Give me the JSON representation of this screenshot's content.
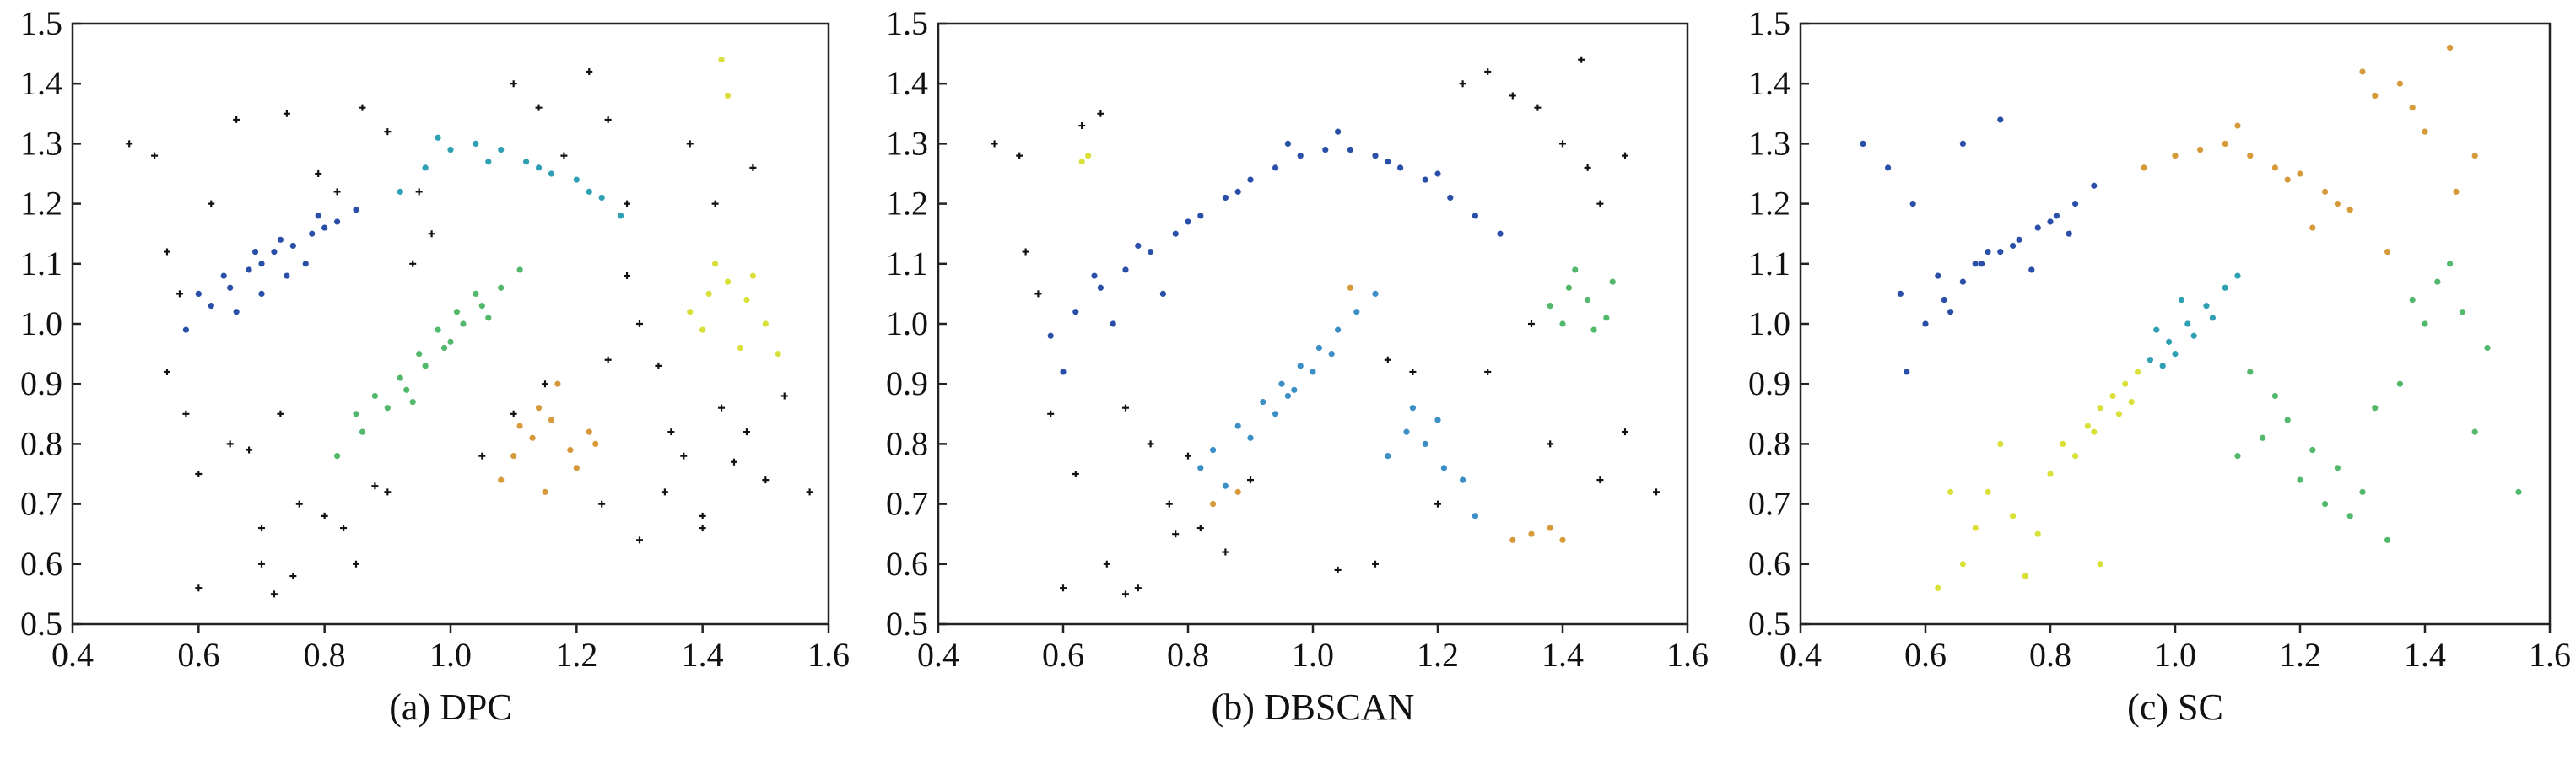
{
  "colors": {
    "noise": "#111111",
    "blue": "#2a4fa8",
    "teal": "#2f9fb3",
    "green": "#52b86b",
    "orange": "#d69a3a",
    "yellow": "#d9e039",
    "sky": "#3b8fc6"
  },
  "chart_data": [
    {
      "type": "scatter",
      "caption": "(a) DPC",
      "xlim": [
        0.4,
        1.6
      ],
      "ylim": [
        0.5,
        1.5
      ],
      "xticks": [
        "0.4",
        "0.6",
        "0.8",
        "1.0",
        "1.2",
        "1.4",
        "1.6"
      ],
      "yticks": [
        "0.5",
        "0.6",
        "0.7",
        "0.8",
        "0.9",
        "1.0",
        "1.1",
        "1.2",
        "1.3",
        "1.4",
        "1.5"
      ],
      "grid": false,
      "series": [
        {
          "color_key": "blue",
          "x": [
            0.58,
            0.62,
            0.65,
            0.68,
            0.7,
            0.72,
            0.75,
            0.78,
            0.8,
            0.82,
            0.85,
            0.66,
            0.7,
            0.74,
            0.77,
            0.6,
            0.64,
            0.69,
            0.73,
            0.79
          ],
          "y": [
            0.99,
            1.03,
            1.06,
            1.09,
            1.1,
            1.12,
            1.13,
            1.15,
            1.16,
            1.17,
            1.19,
            1.02,
            1.05,
            1.08,
            1.1,
            1.05,
            1.08,
            1.12,
            1.14,
            1.18
          ]
        },
        {
          "color_key": "teal",
          "x": [
            0.92,
            0.96,
            1.0,
            1.04,
            1.08,
            1.12,
            1.16,
            1.2,
            1.24,
            1.27,
            0.98,
            1.06,
            1.14,
            1.22
          ],
          "y": [
            1.22,
            1.26,
            1.29,
            1.3,
            1.29,
            1.27,
            1.25,
            1.24,
            1.21,
            1.18,
            1.31,
            1.27,
            1.26,
            1.22
          ]
        },
        {
          "color_key": "green",
          "x": [
            0.82,
            0.86,
            0.9,
            0.93,
            0.96,
            0.99,
            1.02,
            1.05,
            1.08,
            1.11,
            0.88,
            0.92,
            0.95,
            0.98,
            1.01,
            1.04,
            0.85,
            0.94,
            1.0,
            1.06
          ],
          "y": [
            0.78,
            0.82,
            0.86,
            0.89,
            0.93,
            0.96,
            1.0,
            1.03,
            1.06,
            1.09,
            0.88,
            0.91,
            0.95,
            0.99,
            1.02,
            1.05,
            0.85,
            0.87,
            0.97,
            1.01
          ]
        },
        {
          "color_key": "orange",
          "x": [
            1.1,
            1.13,
            1.16,
            1.19,
            1.22,
            1.08,
            1.14,
            1.2,
            1.17,
            1.11,
            1.23,
            1.15
          ],
          "y": [
            0.78,
            0.81,
            0.84,
            0.79,
            0.82,
            0.74,
            0.86,
            0.76,
            0.9,
            0.83,
            0.8,
            0.72
          ]
        },
        {
          "color_key": "yellow",
          "x": [
            1.38,
            1.41,
            1.44,
            1.47,
            1.5,
            1.42,
            1.46,
            1.4,
            1.48,
            1.44,
            1.52,
            1.43
          ],
          "y": [
            1.02,
            1.05,
            1.07,
            1.04,
            1.0,
            1.1,
            0.96,
            0.99,
            1.08,
            1.38,
            0.95,
            1.44
          ]
        },
        {
          "color_key": "noise",
          "x": [
            0.49,
            0.53,
            0.55,
            0.57,
            0.6,
            0.62,
            0.66,
            0.7,
            0.73,
            0.76,
            0.79,
            0.83,
            0.86,
            0.9,
            0.94,
            0.97,
            1.1,
            1.14,
            1.18,
            1.22,
            1.25,
            1.28,
            1.3,
            1.34,
            1.37,
            1.4,
            1.43,
            1.47,
            1.5,
            1.53,
            1.57,
            0.6,
            0.65,
            0.7,
            0.75,
            0.8,
            0.85,
            0.88,
            1.05,
            1.1,
            1.15,
            1.25,
            1.3,
            1.35,
            1.4,
            1.45,
            0.55,
            0.58,
            0.68,
            0.72,
            0.9,
            0.95,
            1.28,
            1.33,
            1.38,
            1.42,
            1.48,
            0.74,
            0.82,
            1.24
          ],
          "y": [
            1.3,
            1.28,
            0.92,
            1.05,
            0.56,
            1.2,
            1.34,
            0.6,
            0.85,
            0.7,
            1.25,
            0.66,
            1.36,
            1.32,
            1.1,
            1.15,
            1.4,
            1.36,
            1.28,
            1.42,
            1.34,
            1.2,
            0.64,
            0.72,
            0.78,
            0.66,
            0.86,
            0.82,
            0.74,
            0.88,
            0.72,
            0.75,
            0.8,
            0.66,
            0.58,
            0.68,
            0.6,
            0.73,
            0.78,
            0.85,
            0.9,
            0.94,
            1.0,
            0.82,
            0.68,
            0.77,
            1.12,
            0.85,
            0.79,
            0.55,
            0.72,
            1.22,
            1.08,
            0.93,
            1.3,
            1.2,
            1.26,
            1.35,
            1.22,
            0.7
          ]
        }
      ]
    },
    {
      "type": "scatter",
      "caption": "(b) DBSCAN",
      "xlim": [
        0.4,
        1.6
      ],
      "ylim": [
        0.5,
        1.5
      ],
      "xticks": [
        "0.4",
        "0.6",
        "0.8",
        "1.0",
        "1.2",
        "1.4",
        "1.6"
      ],
      "yticks": [
        "0.5",
        "0.6",
        "0.7",
        "0.8",
        "0.9",
        "1.0",
        "1.1",
        "1.2",
        "1.3",
        "1.4",
        "1.5"
      ],
      "grid": false,
      "series": [
        {
          "color_key": "blue",
          "x": [
            0.58,
            0.62,
            0.66,
            0.7,
            0.74,
            0.78,
            0.82,
            0.86,
            0.9,
            0.94,
            0.98,
            1.02,
            1.06,
            1.1,
            1.14,
            1.18,
            1.22,
            1.26,
            1.3,
            0.65,
            0.72,
            0.8,
            0.88,
            0.96,
            1.04,
            1.12,
            1.2,
            0.6,
            0.68,
            0.76
          ],
          "y": [
            0.98,
            1.02,
            1.06,
            1.09,
            1.12,
            1.15,
            1.18,
            1.21,
            1.24,
            1.26,
            1.28,
            1.29,
            1.29,
            1.28,
            1.26,
            1.24,
            1.21,
            1.18,
            1.15,
            1.08,
            1.13,
            1.17,
            1.22,
            1.3,
            1.32,
            1.27,
            1.25,
            0.92,
            1.0,
            1.05
          ]
        },
        {
          "color_key": "sky",
          "x": [
            0.84,
            0.88,
            0.92,
            0.95,
            0.98,
            1.01,
            1.04,
            1.07,
            1.1,
            0.9,
            0.94,
            0.97,
            1.0,
            1.03,
            1.12,
            1.15,
            1.18,
            1.21,
            1.24,
            1.16,
            1.2,
            0.86,
            0.82,
            1.26,
            0.96
          ],
          "y": [
            0.79,
            0.83,
            0.87,
            0.9,
            0.93,
            0.96,
            0.99,
            1.02,
            1.05,
            0.81,
            0.85,
            0.89,
            0.92,
            0.95,
            0.78,
            0.82,
            0.8,
            0.76,
            0.74,
            0.86,
            0.84,
            0.73,
            0.76,
            0.68,
            0.88
          ]
        },
        {
          "color_key": "green",
          "x": [
            1.38,
            1.41,
            1.44,
            1.47,
            1.42,
            1.45,
            1.4,
            1.48
          ],
          "y": [
            1.03,
            1.06,
            1.04,
            1.01,
            1.09,
            0.99,
            1.0,
            1.07
          ]
        },
        {
          "color_key": "orange",
          "x": [
            1.32,
            1.35,
            1.38,
            1.4,
            0.84,
            0.88,
            1.06
          ],
          "y": [
            0.64,
            0.65,
            0.66,
            0.64,
            0.7,
            0.72,
            1.06
          ]
        },
        {
          "color_key": "yellow",
          "x": [
            0.63,
            0.64
          ],
          "y": [
            1.27,
            1.28
          ]
        },
        {
          "color_key": "noise",
          "x": [
            0.49,
            0.53,
            0.56,
            0.6,
            0.63,
            0.67,
            0.7,
            0.74,
            0.77,
            0.82,
            0.86,
            0.9,
            1.04,
            1.1,
            1.16,
            1.2,
            1.24,
            1.28,
            1.32,
            1.36,
            1.4,
            1.43,
            1.46,
            1.5,
            1.55,
            0.62,
            0.7,
            0.78,
            1.28,
            1.35,
            1.46,
            0.54,
            0.58,
            1.12,
            1.38,
            1.44,
            1.5,
            0.66,
            0.72,
            0.8
          ],
          "y": [
            1.3,
            1.28,
            1.05,
            0.56,
            1.33,
            0.6,
            0.55,
            0.8,
            0.7,
            0.66,
            0.62,
            0.74,
            0.59,
            0.6,
            0.92,
            0.7,
            1.4,
            1.42,
            1.38,
            1.36,
            1.3,
            1.44,
            1.2,
            0.82,
            0.72,
            0.75,
            0.86,
            0.65,
            0.92,
            1.0,
            0.74,
            1.12,
            0.85,
            0.94,
            0.8,
            1.26,
            1.28,
            1.35,
            0.56,
            0.78
          ]
        }
      ]
    },
    {
      "type": "scatter",
      "caption": "(c) SC",
      "xlim": [
        0.4,
        1.6
      ],
      "ylim": [
        0.5,
        1.5
      ],
      "xticks": [
        "0.4",
        "0.6",
        "0.8",
        "1.0",
        "1.2",
        "1.4",
        "1.6"
      ],
      "yticks": [
        "0.5",
        "0.6",
        "0.7",
        "0.8",
        "0.9",
        "1.0",
        "1.1",
        "1.2",
        "1.3",
        "1.4",
        "1.5"
      ],
      "grid": false,
      "series": [
        {
          "color_key": "blue",
          "x": [
            0.5,
            0.54,
            0.57,
            0.6,
            0.63,
            0.66,
            0.69,
            0.72,
            0.75,
            0.78,
            0.81,
            0.84,
            0.87,
            0.62,
            0.68,
            0.74,
            0.8,
            0.56,
            0.64,
            0.7,
            0.77,
            0.83,
            0.58,
            0.66,
            0.72
          ],
          "y": [
            1.3,
            1.26,
            0.92,
            1.0,
            1.04,
            1.07,
            1.1,
            1.12,
            1.14,
            1.16,
            1.18,
            1.2,
            1.23,
            1.08,
            1.1,
            1.13,
            1.17,
            1.05,
            1.02,
            1.12,
            1.09,
            1.15,
            1.2,
            1.3,
            1.34
          ]
        },
        {
          "color_key": "orange",
          "x": [
            0.95,
            1.0,
            1.04,
            1.08,
            1.12,
            1.16,
            1.2,
            1.24,
            1.28,
            1.32,
            1.36,
            1.4,
            1.44,
            1.48,
            1.1,
            1.18,
            1.26,
            1.3,
            1.38,
            1.45,
            1.22,
            1.34
          ],
          "y": [
            1.26,
            1.28,
            1.29,
            1.3,
            1.28,
            1.26,
            1.25,
            1.22,
            1.19,
            1.38,
            1.4,
            1.32,
            1.46,
            1.28,
            1.33,
            1.24,
            1.2,
            1.42,
            1.36,
            1.22,
            1.16,
            1.12
          ]
        },
        {
          "color_key": "teal",
          "x": [
            0.96,
            0.99,
            1.02,
            1.05,
            1.08,
            1.0,
            1.03,
            1.06,
            0.98,
            1.1,
            0.97,
            1.01
          ],
          "y": [
            0.94,
            0.97,
            1.0,
            1.03,
            1.06,
            0.95,
            0.98,
            1.01,
            0.93,
            1.08,
            0.99,
            1.04
          ]
        },
        {
          "color_key": "yellow",
          "x": [
            0.82,
            0.86,
            0.88,
            0.9,
            0.92,
            0.94,
            0.84,
            0.87,
            0.91,
            0.93,
            0.7,
            0.74,
            0.78,
            0.8,
            0.66,
            0.62,
            0.76,
            0.72,
            0.68,
            0.88,
            0.64
          ],
          "y": [
            0.8,
            0.83,
            0.86,
            0.88,
            0.9,
            0.92,
            0.78,
            0.82,
            0.85,
            0.87,
            0.72,
            0.68,
            0.65,
            0.75,
            0.6,
            0.56,
            0.58,
            0.8,
            0.66,
            0.6,
            0.72
          ]
        },
        {
          "color_key": "green",
          "x": [
            1.1,
            1.14,
            1.18,
            1.22,
            1.26,
            1.3,
            1.16,
            1.2,
            1.24,
            1.38,
            1.42,
            1.46,
            1.4,
            1.44,
            1.5,
            1.55,
            1.34,
            1.28,
            1.48,
            1.36,
            1.32,
            1.12
          ],
          "y": [
            0.78,
            0.81,
            0.84,
            0.79,
            0.76,
            0.72,
            0.88,
            0.74,
            0.7,
            1.04,
            1.07,
            1.02,
            1.0,
            1.1,
            0.96,
            0.72,
            0.64,
            0.68,
            0.82,
            0.9,
            0.86,
            0.92
          ]
        }
      ]
    }
  ]
}
